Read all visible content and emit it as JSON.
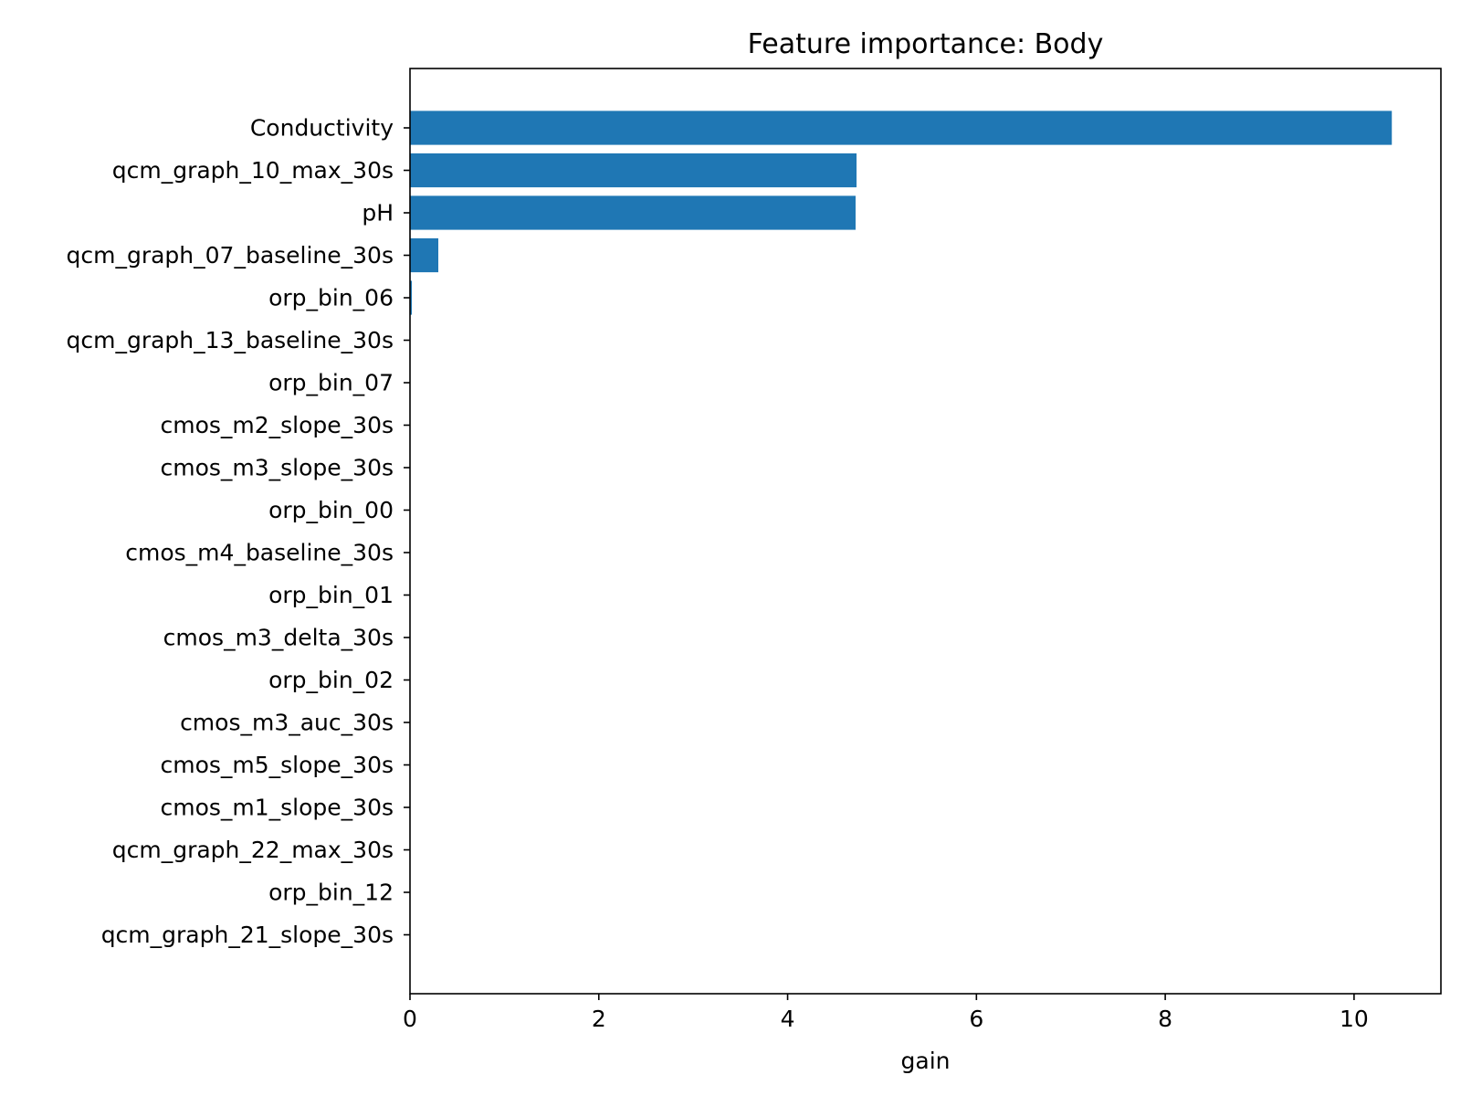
{
  "chart_data": {
    "type": "bar",
    "orientation": "horizontal",
    "title": "Feature importance: Body",
    "xlabel": "gain",
    "ylabel": "",
    "xlim": [
      0,
      10.92
    ],
    "xticks": [
      0,
      2,
      4,
      6,
      8,
      10
    ],
    "grid": false,
    "bar_color": "#1f77b4",
    "categories": [
      "Conductivity",
      "qcm_graph_10_max_30s",
      "pH",
      "qcm_graph_07_baseline_30s",
      "orp_bin_06",
      "qcm_graph_13_baseline_30s",
      "orp_bin_07",
      "cmos_m2_slope_30s",
      "cmos_m3_slope_30s",
      "orp_bin_00",
      "cmos_m4_baseline_30s",
      "orp_bin_01",
      "cmos_m3_delta_30s",
      "orp_bin_02",
      "cmos_m3_auc_30s",
      "cmos_m5_slope_30s",
      "cmos_m1_slope_30s",
      "qcm_graph_22_max_30s",
      "orp_bin_12",
      "qcm_graph_21_slope_30s"
    ],
    "values": [
      10.4,
      4.73,
      4.72,
      0.3,
      0.02,
      0,
      0,
      0,
      0,
      0,
      0,
      0,
      0,
      0,
      0,
      0,
      0,
      0,
      0,
      0
    ]
  }
}
